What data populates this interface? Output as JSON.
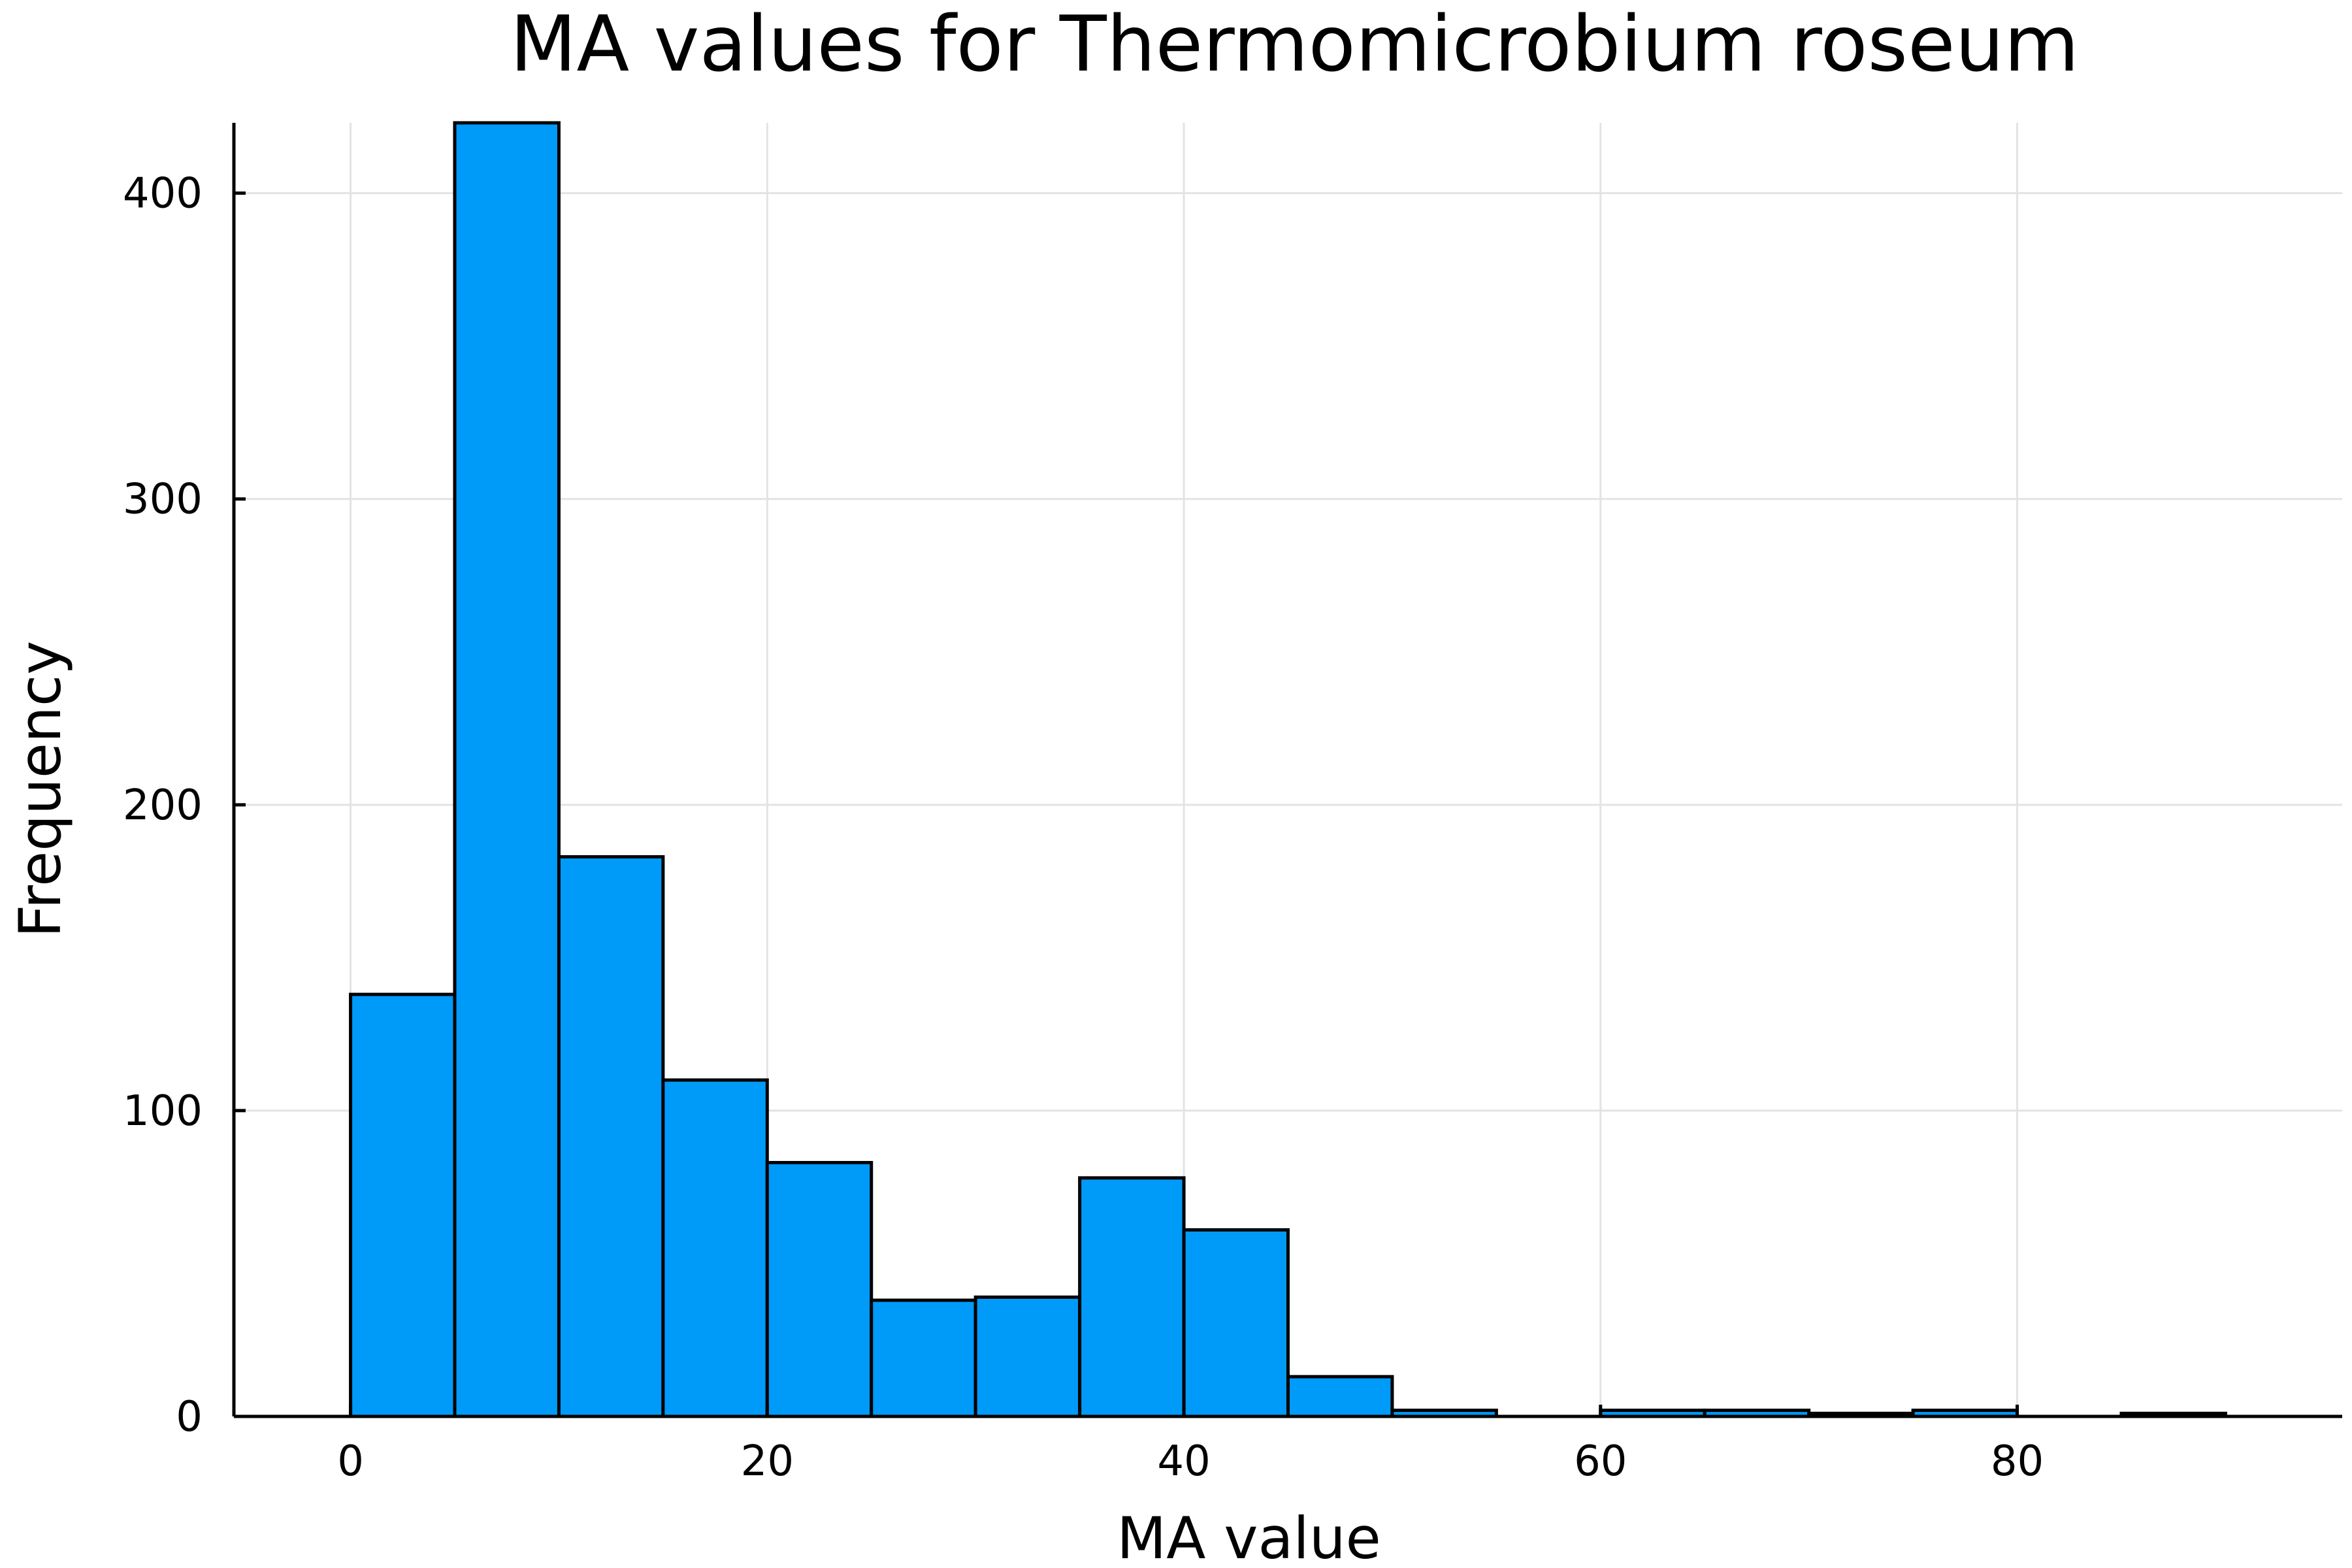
{
  "chart_data": {
    "type": "bar",
    "title": "MA values for Thermomicrobium roseum",
    "xlabel": "MA value",
    "ylabel": "Frequency",
    "bin_width": 5,
    "bins": [
      {
        "start": 0,
        "end": 5,
        "count": 138
      },
      {
        "start": 5,
        "end": 10,
        "count": 423
      },
      {
        "start": 10,
        "end": 15,
        "count": 183
      },
      {
        "start": 15,
        "end": 20,
        "count": 110
      },
      {
        "start": 20,
        "end": 25,
        "count": 83
      },
      {
        "start": 25,
        "end": 30,
        "count": 38
      },
      {
        "start": 30,
        "end": 35,
        "count": 39
      },
      {
        "start": 35,
        "end": 40,
        "count": 78
      },
      {
        "start": 40,
        "end": 45,
        "count": 61
      },
      {
        "start": 45,
        "end": 50,
        "count": 13
      },
      {
        "start": 50,
        "end": 55,
        "count": 2
      },
      {
        "start": 55,
        "end": 60,
        "count": 0
      },
      {
        "start": 60,
        "end": 65,
        "count": 2
      },
      {
        "start": 65,
        "end": 70,
        "count": 2
      },
      {
        "start": 70,
        "end": 75,
        "count": 1
      },
      {
        "start": 75,
        "end": 80,
        "count": 2
      },
      {
        "start": 80,
        "end": 85,
        "count": 0
      },
      {
        "start": 85,
        "end": 90,
        "count": 1
      }
    ],
    "xlim": [
      -5.6,
      95.6
    ],
    "ylim": [
      0,
      423
    ],
    "xticks": [
      0,
      20,
      40,
      60,
      80
    ],
    "yticks": [
      0,
      100,
      200,
      300,
      400
    ],
    "grid": true,
    "legend": "none",
    "bar_color": "#009af9",
    "edge_color": "#000000"
  }
}
